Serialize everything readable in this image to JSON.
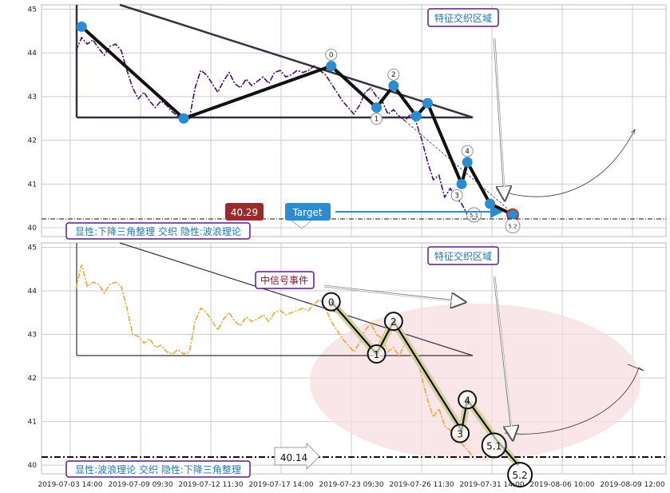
{
  "chart_data": [
    {
      "type": "line",
      "panel": "top",
      "ylim": [
        39.8,
        45.1
      ],
      "yticks": [
        40,
        41,
        42,
        43,
        44,
        45
      ],
      "xticks": [
        "2019-07-03 14:00",
        "2019-07-09 09:30",
        "2019-07-12 11:30",
        "2019-07-17 14:00",
        "2019-07-23 09:30",
        "2019-07-26 11:30",
        "2019-07-31 14:00",
        "2019-08-06 10:00",
        "2019-08-09 12:00"
      ],
      "grid": true,
      "series": [
        {
          "style": "dash-dot",
          "color": "#4b0a6e",
          "values": [
            44.05,
            44.35,
            44.2,
            44.3,
            44.1,
            43.95,
            44.15,
            44.2,
            44.05,
            43.6,
            43.2,
            42.95,
            43.1,
            42.9,
            42.75,
            42.9,
            42.8,
            42.65,
            42.55,
            42.6,
            42.5,
            43.2,
            43.6,
            43.5,
            43.3,
            43.1,
            43.35,
            43.55,
            43.3,
            43.2,
            43.4,
            43.25,
            43.35,
            43.45,
            43.3,
            43.55,
            43.6,
            43.45,
            43.5,
            43.6,
            43.55,
            43.6,
            43.7,
            43.6,
            43.5,
            43.3,
            43.1,
            42.9,
            42.75,
            42.6,
            42.8,
            43.1,
            43.2,
            43.0,
            42.9,
            42.6,
            42.7,
            42.55,
            42.45,
            42.6,
            42.4,
            42.0,
            41.5,
            41.1,
            41.2,
            40.7,
            40.9,
            40.7,
            40.55,
            40.3,
            40.35
          ]
        }
      ],
      "wave_points": [
        {
          "label": "",
          "x_index": 2,
          "value": 44.6
        },
        {
          "label": "",
          "x_index": 20,
          "value": 42.5
        },
        {
          "label": "0",
          "x_index": 46,
          "value": 43.7
        },
        {
          "label": "1",
          "x_index": 54,
          "value": 42.75
        },
        {
          "label": "2",
          "x_index": 57,
          "value": 43.25
        },
        {
          "label": "",
          "x_index": 61,
          "value": 42.55
        },
        {
          "label": "",
          "x_index": 63,
          "value": 42.85
        },
        {
          "label": "3",
          "x_index": 69,
          "value": 41.0
        },
        {
          "label": "4",
          "x_index": 70,
          "value": 41.5
        },
        {
          "label": "5.1",
          "x_index": 74,
          "value": 40.55
        },
        {
          "label": "5.2",
          "x_index": 78,
          "value": 40.3
        }
      ],
      "annotations": {
        "price_label": "40.29",
        "target_label": "Target",
        "region_label": "特征交织区域",
        "footer_label": "显性:下降三角整理 交织 隐性:波浪理论"
      }
    },
    {
      "type": "line",
      "panel": "bottom",
      "ylim": [
        39.8,
        45.1
      ],
      "yticks": [
        40,
        41,
        42,
        43,
        44,
        45
      ],
      "xticks": [
        "2019-07-03 14:00",
        "2019-07-09 09:30",
        "2019-07-12 11:30",
        "2019-07-17 14:00",
        "2019-07-23 09:30",
        "2019-07-26 11:30",
        "2019-07-31 14:00",
        "2019-08-06 10:00",
        "2019-08-09 12:00"
      ],
      "grid": true,
      "series": [
        {
          "style": "dash-dot",
          "color": "#e8b04a",
          "values": [
            44.05,
            44.6,
            44.1,
            44.2,
            44.15,
            43.95,
            44.15,
            44.2,
            44.1,
            43.6,
            43.0,
            42.95,
            42.8,
            42.9,
            42.7,
            42.75,
            42.6,
            42.55,
            42.65,
            42.55,
            42.6,
            43.3,
            43.6,
            43.5,
            43.3,
            43.1,
            43.35,
            43.5,
            43.3,
            43.2,
            43.4,
            43.3,
            43.35,
            43.45,
            43.3,
            43.5,
            43.55,
            43.45,
            43.5,
            43.55,
            43.6,
            43.55,
            43.7,
            43.8,
            43.6,
            43.3,
            43.1,
            42.9,
            42.75,
            42.6,
            42.8,
            43.1,
            43.25,
            43.0,
            42.9,
            42.6,
            42.7,
            42.5,
            42.8,
            42.6,
            42.5,
            42.0,
            41.5,
            41.1,
            41.3,
            40.9,
            40.8,
            40.6,
            40.5,
            40.35,
            40.2
          ]
        }
      ],
      "wave_points": [
        {
          "label": "0",
          "x_index": 46,
          "value": 43.75
        },
        {
          "label": "1",
          "x_index": 54,
          "value": 42.55
        },
        {
          "label": "2",
          "x_index": 57,
          "value": 43.3
        },
        {
          "label": "3",
          "x_index": 69,
          "value": 40.8
        },
        {
          "label": "4",
          "x_index": 70,
          "value": 41.5
        },
        {
          "label": "5.1",
          "x_index": 75,
          "value": 40.6
        },
        {
          "label": "5.2",
          "x_index": 79,
          "value": 40.0
        }
      ],
      "annotations": {
        "price_label": "40.14",
        "signal_label": "中信号事件",
        "region_label": "特征交织区域",
        "footer_label": "显性:波浪理论 交织 隐性:下降三角整理"
      }
    }
  ],
  "colors": {
    "grid": "#cccccc",
    "triangle": "#333344",
    "wave": "#111111",
    "blue_marker": "#2b8ccf",
    "price_badge": "#9b2a2a",
    "target_badge": "#2b8ccf",
    "label_text_blue": "#1f77b4",
    "label_border": "#5a1a8a",
    "signal_text": "#7a1a3a",
    "ellipse": "#f5dde2",
    "band": "#cfcf9a"
  }
}
